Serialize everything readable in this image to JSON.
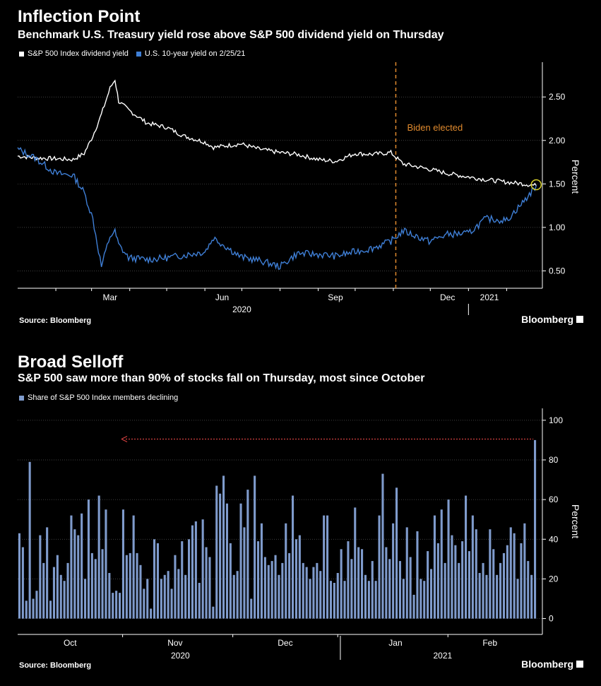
{
  "chart_data": [
    {
      "type": "line",
      "title": "Inflection Point",
      "subtitle": "Benchmark U.S. Treasury yield rose above S&P 500 dividend yield on Thursday",
      "ylabel": "Percent",
      "ylim": [
        0.3,
        2.9
      ],
      "yticks": [
        "0.50",
        "1.00",
        "1.50",
        "2.00",
        "2.50"
      ],
      "xticks": [
        "Mar",
        "Jun",
        "Sep",
        "Dec",
        "2021"
      ],
      "xgroup": "2020",
      "annotation": "Biden elected",
      "series": [
        {
          "name": "S&P 500 Index dividend yield",
          "color": "#ffffff",
          "x": [
            "2020-01-01",
            "2020-01-15",
            "2020-02-01",
            "2020-02-15",
            "2020-02-24",
            "2020-03-02",
            "2020-03-09",
            "2020-03-16",
            "2020-03-20",
            "2020-03-23",
            "2020-03-31",
            "2020-04-15",
            "2020-05-01",
            "2020-05-15",
            "2020-06-01",
            "2020-06-08",
            "2020-06-30",
            "2020-07-15",
            "2020-08-01",
            "2020-08-15",
            "2020-09-01",
            "2020-09-15",
            "2020-10-01",
            "2020-10-15",
            "2020-10-30",
            "2020-11-09",
            "2020-11-30",
            "2020-12-15",
            "2021-01-01",
            "2021-01-15",
            "2021-02-01",
            "2021-02-15",
            "2021-02-25"
          ],
          "values": [
            1.82,
            1.8,
            1.79,
            1.78,
            1.85,
            2.05,
            2.3,
            2.6,
            2.7,
            2.45,
            2.35,
            2.2,
            2.15,
            2.05,
            1.98,
            1.92,
            1.96,
            1.9,
            1.86,
            1.84,
            1.78,
            1.76,
            1.85,
            1.84,
            1.86,
            1.73,
            1.67,
            1.62,
            1.58,
            1.55,
            1.52,
            1.5,
            1.48
          ]
        },
        {
          "name": "U.S. 10-year yield on 2/25/21",
          "color": "#3f7fd6",
          "x": [
            "2020-01-01",
            "2020-01-15",
            "2020-02-01",
            "2020-02-15",
            "2020-02-24",
            "2020-03-02",
            "2020-03-09",
            "2020-03-16",
            "2020-03-20",
            "2020-03-23",
            "2020-03-31",
            "2020-04-15",
            "2020-05-01",
            "2020-05-15",
            "2020-06-01",
            "2020-06-08",
            "2020-06-30",
            "2020-07-15",
            "2020-08-01",
            "2020-08-15",
            "2020-09-01",
            "2020-09-15",
            "2020-10-01",
            "2020-10-15",
            "2020-10-30",
            "2020-11-09",
            "2020-11-30",
            "2020-12-15",
            "2021-01-01",
            "2021-01-15",
            "2021-02-01",
            "2021-02-15",
            "2021-02-25"
          ],
          "values": [
            1.9,
            1.8,
            1.62,
            1.6,
            1.4,
            1.1,
            0.55,
            0.9,
            0.95,
            0.8,
            0.65,
            0.63,
            0.65,
            0.68,
            0.72,
            0.88,
            0.66,
            0.62,
            0.55,
            0.7,
            0.69,
            0.67,
            0.72,
            0.76,
            0.84,
            0.96,
            0.84,
            0.92,
            0.93,
            1.1,
            1.08,
            1.3,
            1.48
          ]
        }
      ]
    },
    {
      "type": "bar",
      "title": "Broad Selloff",
      "subtitle": "S&P 500 saw more than 90% of stocks fall on Thursday, most since October",
      "ylabel": "Percent",
      "ylim": [
        -8,
        106
      ],
      "yticks": [
        "0",
        "20",
        "40",
        "60",
        "80",
        "100"
      ],
      "xticks": [
        "Oct",
        "Nov",
        "Dec",
        "Jan",
        "Feb"
      ],
      "xgroups": [
        "2020",
        "2021"
      ],
      "series": [
        {
          "name": "Share of S&P 500 Index members declining",
          "color": "#7f9bcc",
          "values": [
            43,
            36,
            9,
            79,
            10,
            14,
            42,
            28,
            46,
            9,
            26,
            32,
            22,
            19,
            28,
            52,
            45,
            42,
            53,
            20,
            60,
            33,
            30,
            62,
            35,
            55,
            23,
            13,
            14,
            13,
            55,
            32,
            33,
            52,
            33,
            27,
            15,
            20,
            5,
            40,
            38,
            20,
            22,
            24,
            15,
            32,
            25,
            39,
            22,
            40,
            47,
            49,
            18,
            50,
            36,
            31,
            6,
            67,
            63,
            72,
            58,
            38,
            22,
            24,
            58,
            46,
            65,
            10,
            72,
            39,
            48,
            31,
            27,
            29,
            32,
            22,
            28,
            48,
            33,
            62,
            40,
            42,
            28,
            26,
            20,
            26,
            28,
            24,
            52,
            52,
            19,
            18,
            23,
            35,
            19,
            39,
            30,
            56,
            36,
            35,
            22,
            19,
            29,
            19,
            52,
            73,
            36,
            30,
            48,
            66,
            29,
            20,
            46,
            31,
            12,
            44,
            20,
            19,
            34,
            25,
            52,
            38,
            55,
            28,
            60,
            42,
            37,
            28,
            39,
            62,
            34,
            52,
            45,
            23,
            28,
            22,
            45,
            35,
            22,
            28,
            33,
            37,
            46,
            43,
            20,
            38,
            48,
            29,
            22,
            90
          ],
          "values_note": ""
        }
      ]
    }
  ],
  "legend_top": [
    {
      "label": "S&P 500 Index dividend yield",
      "color": "#ffffff"
    },
    {
      "label": "U.S. 10-year yield on 2/25/21",
      "color": "#3f7fd6"
    }
  ],
  "legend_bottom": [
    {
      "label": "Share of S&P 500 Index members declining",
      "color": "#7f9bcc"
    }
  ],
  "source": "Source: Bloomberg",
  "brand": "Bloomberg",
  "axis_color": "#ffffff",
  "grid_color": "#555555",
  "annotation_color": "#e08a2e",
  "highlight_color": "#d9d22a",
  "arrow_color": "#d44040"
}
